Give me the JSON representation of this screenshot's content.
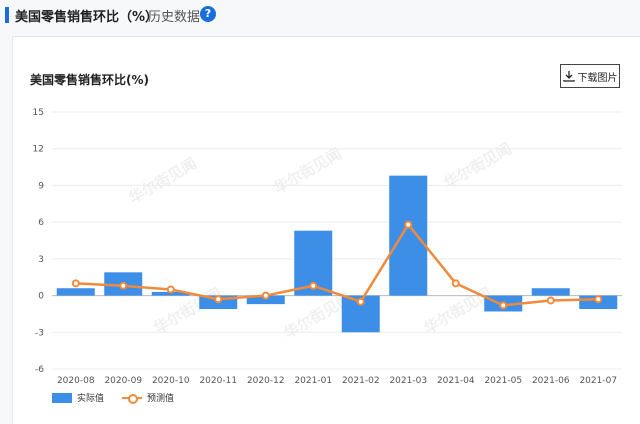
{
  "header": {
    "title": "美国零售销售环比（%）",
    "subtitle": "历史数据",
    "help_icon": "?"
  },
  "download_button": {
    "label": "下载图片",
    "icon": "download-icon"
  },
  "watermark": "华尔街见闻",
  "colors": {
    "bar": "#3c8ee6",
    "line": "#f08a3c",
    "accent": "#1a6ed8"
  },
  "chart_data": {
    "type": "bar",
    "title": "美国零售销售环比(%)",
    "categories": [
      "2020-08",
      "2020-09",
      "2020-10",
      "2020-11",
      "2020-12",
      "2021-01",
      "2021-02",
      "2021-03",
      "2021-04",
      "2021-05",
      "2021-06",
      "2021-07"
    ],
    "yticks": [
      15,
      12,
      9,
      6,
      3,
      0,
      -3,
      -6
    ],
    "ylim": [
      -6,
      15
    ],
    "grid": true,
    "legend_position": "bottom-left",
    "series": [
      {
        "name": "实际值",
        "type": "bar",
        "values": [
          0.6,
          1.9,
          0.3,
          -1.1,
          -0.7,
          5.3,
          -3.0,
          9.8,
          null,
          -1.3,
          0.6,
          -1.1
        ]
      },
      {
        "name": "预测值",
        "type": "line",
        "values": [
          1.0,
          0.8,
          0.5,
          -0.3,
          0.0,
          0.8,
          -0.5,
          5.8,
          1.0,
          -0.8,
          -0.4,
          -0.3
        ]
      }
    ]
  }
}
